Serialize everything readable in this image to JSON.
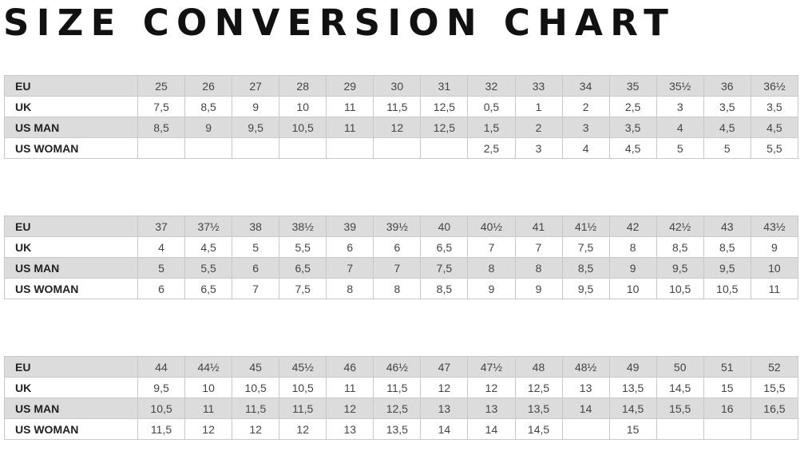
{
  "title": "SIZE CONVERSION CHART",
  "colors": {
    "shaded_row": "#dcdcdc",
    "border": "#c8c8c8"
  },
  "tables": [
    {
      "rows": [
        {
          "label": "EU",
          "values": [
            "25",
            "26",
            "27",
            "28",
            "29",
            "30",
            "31",
            "32",
            "33",
            "34",
            "35",
            "35½",
            "36",
            "36½"
          ]
        },
        {
          "label": "UK",
          "values": [
            "7,5",
            "8,5",
            "9",
            "10",
            "11",
            "11,5",
            "12,5",
            "0,5",
            "1",
            "2",
            "2,5",
            "3",
            "3,5",
            "3,5"
          ]
        },
        {
          "label": "US MAN",
          "values": [
            "8,5",
            "9",
            "9,5",
            "10,5",
            "11",
            "12",
            "12,5",
            "1,5",
            "2",
            "3",
            "3,5",
            "4",
            "4,5",
            "4,5"
          ]
        },
        {
          "label": "US WOMAN",
          "values": [
            "",
            "",
            "",
            "",
            "",
            "",
            "",
            "2,5",
            "3",
            "4",
            "4,5",
            "5",
            "5",
            "5,5"
          ]
        }
      ]
    },
    {
      "rows": [
        {
          "label": "EU",
          "values": [
            "37",
            "37½",
            "38",
            "38½",
            "39",
            "39½",
            "40",
            "40½",
            "41",
            "41½",
            "42",
            "42½",
            "43",
            "43½"
          ]
        },
        {
          "label": "UK",
          "values": [
            "4",
            "4,5",
            "5",
            "5,5",
            "6",
            "6",
            "6,5",
            "7",
            "7",
            "7,5",
            "8",
            "8,5",
            "8,5",
            "9"
          ]
        },
        {
          "label": "US MAN",
          "values": [
            "5",
            "5,5",
            "6",
            "6,5",
            "7",
            "7",
            "7,5",
            "8",
            "8",
            "8,5",
            "9",
            "9,5",
            "9,5",
            "10"
          ]
        },
        {
          "label": "US WOMAN",
          "values": [
            "6",
            "6,5",
            "7",
            "7,5",
            "8",
            "8",
            "8,5",
            "9",
            "9",
            "9,5",
            "10",
            "10,5",
            "10,5",
            "11"
          ]
        }
      ]
    },
    {
      "rows": [
        {
          "label": "EU",
          "values": [
            "44",
            "44½",
            "45",
            "45½",
            "46",
            "46½",
            "47",
            "47½",
            "48",
            "48½",
            "49",
            "50",
            "51",
            "52"
          ]
        },
        {
          "label": "UK",
          "values": [
            "9,5",
            "10",
            "10,5",
            "10,5",
            "11",
            "11,5",
            "12",
            "12",
            "12,5",
            "13",
            "13,5",
            "14,5",
            "15",
            "15,5"
          ]
        },
        {
          "label": "US MAN",
          "values": [
            "10,5",
            "11",
            "11,5",
            "11,5",
            "12",
            "12,5",
            "13",
            "13",
            "13,5",
            "14",
            "14,5",
            "15,5",
            "16",
            "16,5"
          ]
        },
        {
          "label": "US WOMAN",
          "values": [
            "11,5",
            "12",
            "12",
            "12",
            "13",
            "13,5",
            "14",
            "14",
            "14,5",
            "",
            "15",
            "",
            "",
            ""
          ]
        }
      ]
    }
  ]
}
